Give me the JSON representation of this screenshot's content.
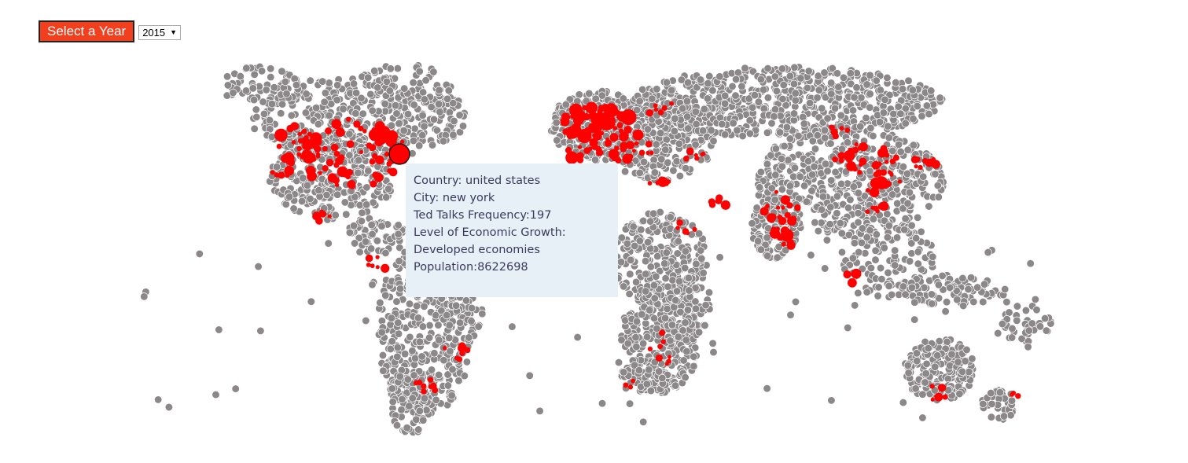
{
  "controls": {
    "select_label": "Select a Year",
    "year_value": "2015",
    "colors": {
      "button_bg": "#f2401f",
      "button_text": "#ffffff"
    }
  },
  "tooltip": {
    "country": "Country: united states",
    "city": "City: new york",
    "frequency": "Ted Talks Frequency:197",
    "growth_label": "Level of Economic Growth:",
    "growth_value": "Developed economies",
    "population": "Population:8622698"
  },
  "map": {
    "colors": {
      "city_dot": "#8c8788",
      "ted_city": "#ff0000",
      "highlight_stroke": "#000000"
    },
    "highlighted_city": "new york"
  }
}
